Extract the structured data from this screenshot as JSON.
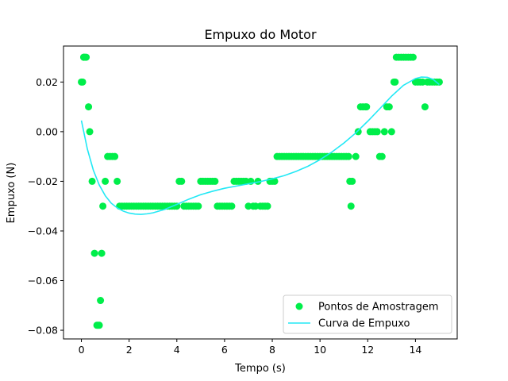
{
  "chart_data": {
    "type": "scatter",
    "title": "Empuxo do Motor",
    "xlabel": "Tempo (s)",
    "ylabel": "Empuxo (N)",
    "xlim": [
      -0.75,
      15.75
    ],
    "ylim": [
      -0.0835,
      0.0345
    ],
    "xticks": [
      0,
      2,
      4,
      6,
      8,
      10,
      12,
      14
    ],
    "yticks": [
      -0.08,
      -0.06,
      -0.04,
      -0.02,
      0.0,
      0.02
    ],
    "xtick_labels": [
      "0",
      "2",
      "4",
      "6",
      "8",
      "10",
      "12",
      "14"
    ],
    "ytick_labels": [
      "−0.08",
      "−0.06",
      "−0.04",
      "−0.02",
      "0.00",
      "0.02"
    ],
    "grid": false,
    "legend_position": "lower-right",
    "colors": {
      "points": "#00ee4a",
      "curve": "#22e8f5"
    },
    "series": [
      {
        "name": "Pontos de Amostragem",
        "kind": "scatter",
        "x": [
          0.0,
          0.05,
          0.1,
          0.1,
          0.15,
          0.2,
          0.3,
          0.35,
          0.45,
          0.55,
          0.65,
          0.7,
          0.75,
          0.8,
          0.85,
          0.9,
          1.0,
          1.1,
          1.2,
          1.3,
          1.4,
          1.5,
          1.6,
          1.7,
          1.8,
          1.9,
          2.0,
          2.1,
          2.2,
          2.3,
          2.4,
          2.5,
          2.6,
          2.7,
          2.8,
          2.9,
          3.0,
          3.1,
          3.2,
          3.3,
          3.4,
          3.5,
          3.6,
          3.7,
          3.8,
          3.9,
          4.0,
          4.1,
          4.2,
          4.3,
          4.4,
          4.5,
          4.6,
          4.7,
          4.8,
          4.9,
          5.0,
          5.1,
          5.2,
          5.3,
          5.4,
          5.5,
          5.6,
          5.7,
          5.8,
          5.9,
          6.0,
          6.1,
          6.2,
          6.3,
          6.4,
          6.5,
          6.6,
          6.7,
          6.8,
          6.9,
          7.0,
          7.1,
          7.2,
          7.3,
          7.4,
          7.5,
          7.6,
          7.7,
          7.8,
          7.9,
          8.0,
          8.1,
          8.2,
          8.3,
          8.4,
          8.5,
          8.6,
          8.7,
          8.8,
          8.9,
          9.0,
          9.1,
          9.2,
          9.3,
          9.4,
          9.5,
          9.6,
          9.7,
          9.8,
          9.9,
          10.0,
          10.1,
          10.2,
          10.3,
          10.4,
          10.5,
          10.6,
          10.7,
          10.8,
          10.9,
          11.0,
          11.1,
          11.2,
          11.25,
          11.3,
          11.35,
          11.5,
          11.6,
          11.7,
          11.8,
          11.9,
          11.95,
          12.1,
          12.2,
          12.3,
          12.4,
          12.5,
          12.6,
          12.7,
          12.8,
          12.9,
          13.0,
          13.1,
          13.15,
          13.2,
          13.3,
          13.4,
          13.5,
          13.6,
          13.7,
          13.8,
          13.9,
          14.0,
          14.1,
          14.2,
          14.3,
          14.4,
          14.5,
          14.6,
          14.7,
          14.8,
          14.9,
          15.0
        ],
        "y": [
          0.02,
          0.02,
          0.03,
          0.03,
          0.03,
          0.03,
          0.01,
          0.0,
          -0.02,
          -0.049,
          -0.078,
          -0.078,
          -0.078,
          -0.068,
          -0.049,
          -0.03,
          -0.02,
          -0.01,
          -0.01,
          -0.01,
          -0.01,
          -0.02,
          -0.03,
          -0.03,
          -0.03,
          -0.03,
          -0.03,
          -0.03,
          -0.03,
          -0.03,
          -0.03,
          -0.03,
          -0.03,
          -0.03,
          -0.03,
          -0.03,
          -0.03,
          -0.03,
          -0.03,
          -0.03,
          -0.03,
          -0.03,
          -0.03,
          -0.03,
          -0.03,
          -0.03,
          -0.03,
          -0.02,
          -0.02,
          -0.03,
          -0.03,
          -0.03,
          -0.03,
          -0.03,
          -0.03,
          -0.03,
          -0.02,
          -0.02,
          -0.02,
          -0.02,
          -0.02,
          -0.02,
          -0.02,
          -0.03,
          -0.03,
          -0.03,
          -0.03,
          -0.03,
          -0.03,
          -0.03,
          -0.02,
          -0.02,
          -0.02,
          -0.02,
          -0.02,
          -0.02,
          -0.03,
          -0.02,
          -0.03,
          -0.03,
          -0.02,
          -0.03,
          -0.03,
          -0.03,
          -0.03,
          -0.02,
          -0.02,
          -0.02,
          -0.01,
          -0.01,
          -0.01,
          -0.01,
          -0.01,
          -0.01,
          -0.01,
          -0.01,
          -0.01,
          -0.01,
          -0.01,
          -0.01,
          -0.01,
          -0.01,
          -0.01,
          -0.01,
          -0.01,
          -0.01,
          -0.01,
          -0.01,
          -0.01,
          -0.01,
          -0.01,
          -0.01,
          -0.01,
          -0.01,
          -0.01,
          -0.01,
          -0.01,
          -0.01,
          -0.01,
          -0.02,
          -0.03,
          -0.02,
          -0.01,
          0.0,
          0.01,
          0.01,
          0.01,
          0.01,
          0.0,
          0.0,
          0.0,
          0.0,
          -0.01,
          -0.01,
          0.0,
          0.01,
          0.01,
          0.0,
          0.02,
          0.02,
          0.03,
          0.03,
          0.03,
          0.03,
          0.03,
          0.03,
          0.03,
          0.03,
          0.02,
          0.02,
          0.02,
          0.02,
          0.01,
          0.02,
          0.02,
          0.02,
          0.02,
          0.02,
          0.02
        ]
      },
      {
        "name": "Curva de Empuxo",
        "kind": "line",
        "x": [
          0.0,
          0.25,
          0.5,
          0.75,
          1.0,
          1.25,
          1.5,
          1.75,
          2.0,
          2.25,
          2.5,
          2.75,
          3.0,
          3.5,
          4.0,
          4.5,
          5.0,
          5.5,
          6.0,
          6.5,
          7.0,
          7.5,
          8.0,
          8.5,
          9.0,
          9.5,
          10.0,
          10.5,
          11.0,
          11.5,
          12.0,
          12.5,
          13.0,
          13.5,
          14.0,
          14.25,
          14.5,
          14.75,
          15.0
        ],
        "y": [
          0.0045,
          -0.007,
          -0.0155,
          -0.0215,
          -0.0258,
          -0.0288,
          -0.0307,
          -0.032,
          -0.0328,
          -0.0332,
          -0.0333,
          -0.0331,
          -0.0327,
          -0.0313,
          -0.0293,
          -0.0272,
          -0.0254,
          -0.024,
          -0.0228,
          -0.0219,
          -0.021,
          -0.0201,
          -0.019,
          -0.0177,
          -0.016,
          -0.0139,
          -0.0113,
          -0.0082,
          -0.0046,
          -0.0005,
          0.0042,
          0.0092,
          0.0143,
          0.0187,
          0.0214,
          0.022,
          0.0219,
          0.021,
          0.019
        ]
      }
    ]
  }
}
